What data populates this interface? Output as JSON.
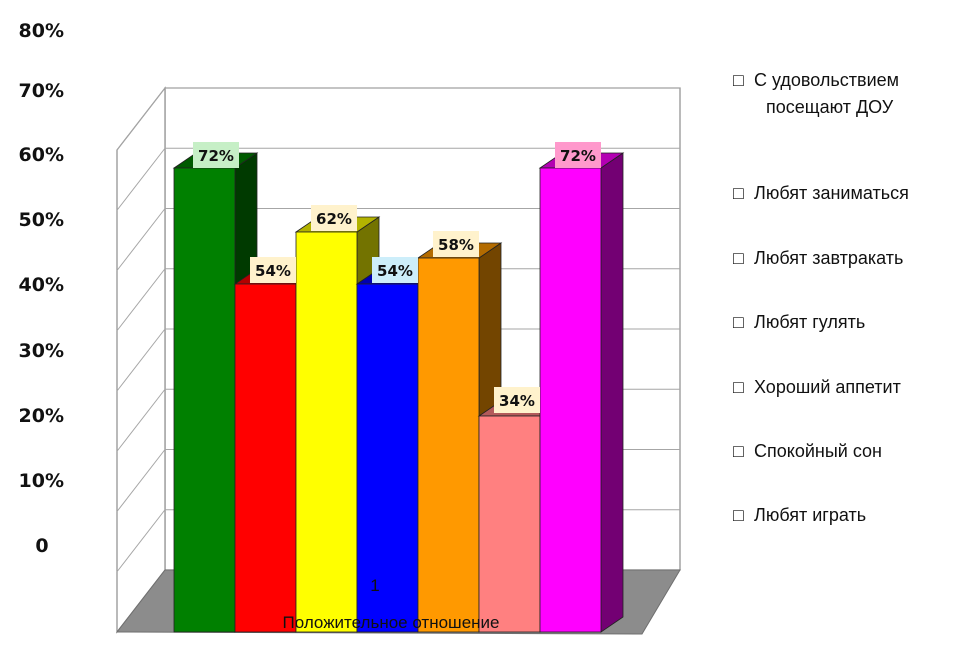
{
  "chart_data": {
    "type": "bar",
    "categories": [
      "1"
    ],
    "xlabel": "Положительное отношение",
    "y_ticks": [
      "0",
      "10%",
      "20%",
      "30%",
      "40%",
      "50%",
      "60%",
      "70%",
      "80%"
    ],
    "ylim": [
      0,
      80
    ],
    "grid": true,
    "legend_position": "right",
    "series": [
      {
        "name": "С удовольствием посещают ДОУ",
        "legend_lines": [
          "С удовольствием",
          "посещают ДОУ"
        ],
        "value": 72,
        "label": "72%",
        "color": "#008000",
        "label_bg": "#c6efc6"
      },
      {
        "name": "Любят заниматься",
        "legend_lines": [
          "Любят заниматься"
        ],
        "value": 54,
        "label": "54%",
        "color": "#ff0000",
        "label_bg": "#fff2cc"
      },
      {
        "name": "Любят завтракать",
        "legend_lines": [
          "Любят завтракать"
        ],
        "value": 62,
        "label": "62%",
        "color": "#ffff00",
        "label_bg": "#fff2cc"
      },
      {
        "name": "Любят гулять",
        "legend_lines": [
          "Любят гулять"
        ],
        "value": 54,
        "label": "54%",
        "color": "#0000ff",
        "label_bg": "#cdeefa"
      },
      {
        "name": "Хороший аппетит",
        "legend_lines": [
          "Хороший аппетит"
        ],
        "value": 58,
        "label": "58%",
        "color": "#ff9900",
        "label_bg": "#fff2cc"
      },
      {
        "name": "Спокойный сон",
        "legend_lines": [
          "Спокойный сон"
        ],
        "value": 34,
        "label": "34%",
        "color": "#ff8080",
        "label_bg": "#fff2cc"
      },
      {
        "name": "Любят играть",
        "legend_lines": [
          "Любят играть"
        ],
        "value": 72,
        "label": "72%",
        "color": "#ff00ff",
        "label_bg": "#ff99cc"
      }
    ],
    "legend_marker": "□"
  }
}
